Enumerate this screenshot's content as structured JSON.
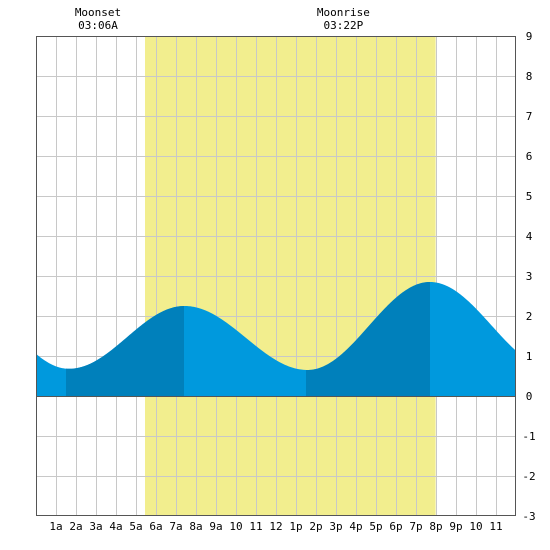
{
  "chart_data": {
    "type": "area",
    "title": "",
    "xlabel": "",
    "ylabel": "",
    "xlim": [
      0,
      24
    ],
    "ylim": [
      -3,
      9
    ],
    "x_ticks": [
      1,
      2,
      3,
      4,
      5,
      6,
      7,
      8,
      9,
      10,
      11,
      12,
      13,
      14,
      15,
      16,
      17,
      18,
      19,
      20,
      21,
      22,
      23
    ],
    "x_tick_labels": [
      "1a",
      "2a",
      "3a",
      "4a",
      "5a",
      "6a",
      "7a",
      "8a",
      "9a",
      "10",
      "11",
      "12",
      "1p",
      "2p",
      "3p",
      "4p",
      "5p",
      "6p",
      "7p",
      "8p",
      "9p",
      "10",
      "11"
    ],
    "y_ticks": [
      -3,
      -2,
      -1,
      0,
      1,
      2,
      3,
      4,
      5,
      6,
      7,
      8,
      9
    ],
    "y_tick_labels": [
      "-3",
      "-2",
      "-1",
      "0",
      "1",
      "2",
      "3",
      "4",
      "5",
      "6",
      "7",
      "8",
      "9"
    ],
    "grid": true,
    "daylight": {
      "start": 5.45,
      "end": 19.98
    },
    "tide_extremes": [
      {
        "t": -4.4,
        "h": 2.85
      },
      {
        "t": 1.65,
        "h": 0.68
      },
      {
        "t": 7.43,
        "h": 2.25
      },
      {
        "t": 13.58,
        "h": 0.65
      },
      {
        "t": 19.7,
        "h": 2.85
      },
      {
        "t": 25.85,
        "h": 0.68
      }
    ],
    "dark_ranges": [
      [
        1.5,
        7.4
      ],
      [
        13.5,
        19.7
      ]
    ],
    "annotations": [
      {
        "label": "Moonset",
        "time": "03:06A",
        "x": 3.1
      },
      {
        "label": "Moonrise",
        "time": "03:22P",
        "x": 15.37
      }
    ],
    "colors": {
      "daylight": "#f2ee8e",
      "tide": "#0099dd",
      "tide_dark": "#0080bb",
      "grid": "#c8c8c8",
      "frame": "#555555"
    }
  }
}
